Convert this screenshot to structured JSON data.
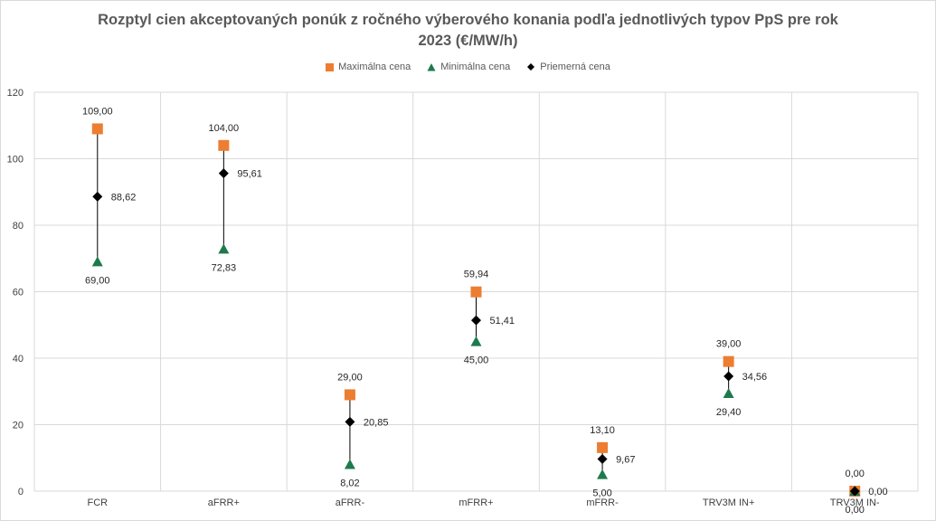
{
  "chart_data": {
    "type": "scatter",
    "title_lines": [
      "Rozptyl cien akceptovaných ponúk z ročného výberového konania podľa jednotlivých typov PpS pre rok",
      "2023 (€/MW/h)"
    ],
    "categories": [
      "FCR",
      "aFRR+",
      "aFRR-",
      "mFRR+",
      "mFRR-",
      "TRV3M IN+",
      "TRV3M IN-"
    ],
    "ylim": [
      0,
      120
    ],
    "yticks": [
      "0",
      "20",
      "40",
      "60",
      "80",
      "100",
      "120"
    ],
    "grid": "vertical and horizontal",
    "legend_position": "top",
    "series": [
      {
        "name": "Maximálna cena",
        "marker": "square",
        "color": "#ed7d31",
        "values": [
          109.0,
          104.0,
          29.0,
          59.94,
          13.1,
          39.0,
          0.0
        ],
        "labels": [
          "109,00",
          "104,00",
          "29,00",
          "59,94",
          "13,10",
          "39,00",
          "0,00"
        ]
      },
      {
        "name": "Minimálna cena",
        "marker": "triangle",
        "color": "#1e7a4c",
        "values": [
          69.0,
          72.83,
          8.02,
          45.0,
          5.0,
          29.4,
          0.0
        ],
        "labels": [
          "69,00",
          "72,83",
          "8,02",
          "45,00",
          "5,00",
          "29,40",
          "0,00"
        ]
      },
      {
        "name": "Priemerná cena",
        "marker": "diamond",
        "color": "#000000",
        "values": [
          88.62,
          95.61,
          20.85,
          51.41,
          9.67,
          34.56,
          0.0
        ],
        "labels": [
          "88,62",
          "95,61",
          "20,85",
          "51,41",
          "9,67",
          "34,56",
          "0,00"
        ]
      }
    ]
  }
}
